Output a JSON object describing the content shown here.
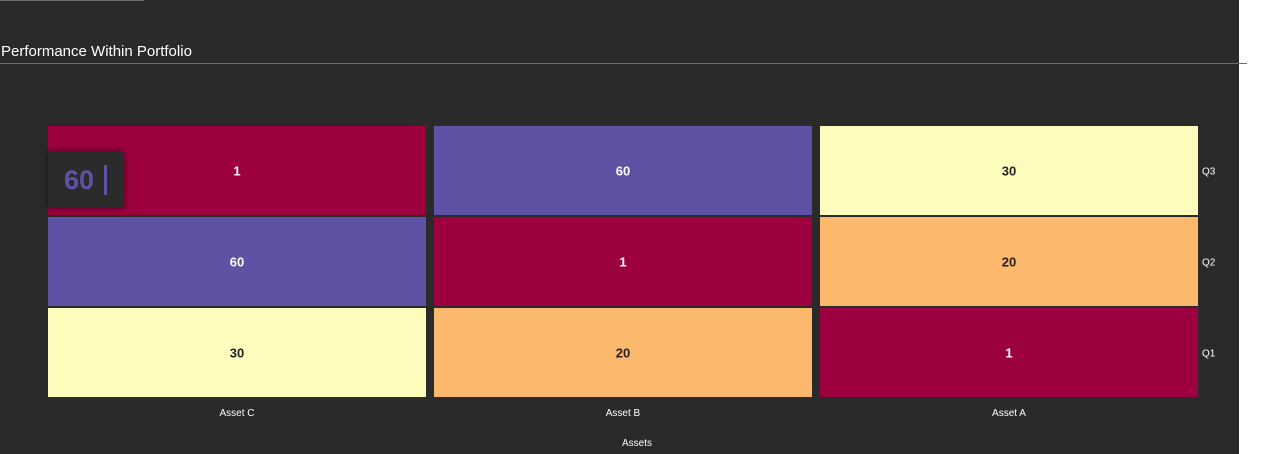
{
  "panel": {
    "title": "Performance Within Portfolio"
  },
  "colors": {
    "background": "#2a2a2a",
    "low": "#9c003f",
    "high": "#5e52a5",
    "mid": "#fefcbd",
    "mid_low": "#fcb86c"
  },
  "tooltip": {
    "value": "60"
  },
  "chart_data": {
    "type": "heatmap",
    "title": "Performance Within Portfolio",
    "xlabel": "Assets",
    "ylabel": "",
    "x_categories": [
      "Asset C",
      "Asset B",
      "Asset A"
    ],
    "y_categories": [
      "Q3",
      "Q2",
      "Q1"
    ],
    "values": [
      [
        1,
        60,
        30
      ],
      [
        60,
        1,
        20
      ],
      [
        30,
        20,
        1
      ]
    ],
    "color_map": {
      "1": "#9c003f",
      "20": "#fcb86c",
      "30": "#fefcbd",
      "60": "#5e52a5"
    },
    "y_axis_position": "right"
  }
}
